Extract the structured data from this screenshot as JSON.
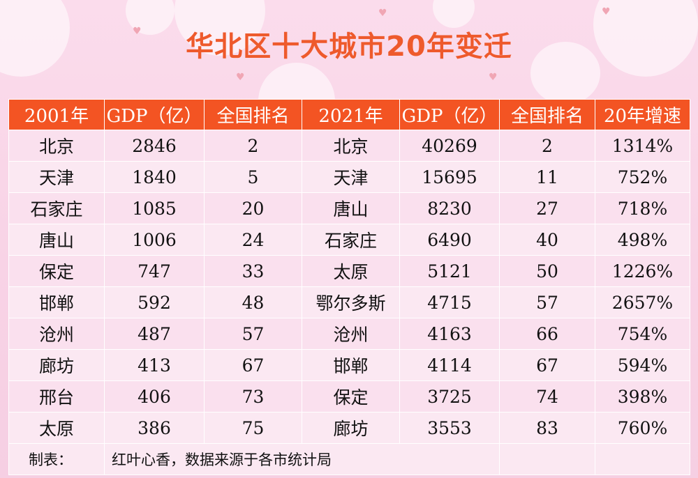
{
  "title": "华北区十大城市20年变迁",
  "headers": [
    "2001年",
    "GDP（亿）",
    "全国排名",
    "2021年",
    "GDP（亿）",
    "全国排名",
    "20年增速"
  ],
  "rows": [
    [
      "北京",
      "2846",
      "2",
      "北京",
      "40269",
      "2",
      "1314%"
    ],
    [
      "天津",
      "1840",
      "5",
      "天津",
      "15695",
      "11",
      "752%"
    ],
    [
      "石家庄",
      "1085",
      "20",
      "唐山",
      "8230",
      "27",
      "718%"
    ],
    [
      "唐山",
      "1006",
      "24",
      "石家庄",
      "6490",
      "40",
      "498%"
    ],
    [
      "保定",
      "747",
      "33",
      "太原",
      "5121",
      "50",
      "1226%"
    ],
    [
      "邯郸",
      "592",
      "48",
      "鄂尔多斯",
      "4715",
      "57",
      "2657%"
    ],
    [
      "沧州",
      "487",
      "57",
      "沧州",
      "4163",
      "66",
      "754%"
    ],
    [
      "廊坊",
      "413",
      "67",
      "邯郸",
      "4114",
      "67",
      "594%"
    ],
    [
      "邢台",
      "406",
      "73",
      "保定",
      "3725",
      "74",
      "398%"
    ],
    [
      "太原",
      "386",
      "75",
      "廊坊",
      "3553",
      "83",
      "760%"
    ]
  ],
  "footer": {
    "label": "制表：",
    "text": "红叶心香，数据来源于各市统计局"
  },
  "colors": {
    "title": "#ee5a2c",
    "header_bg": "#f35423",
    "row_bg": "#fae0ee",
    "page_bg": "#f8d3e6"
  }
}
